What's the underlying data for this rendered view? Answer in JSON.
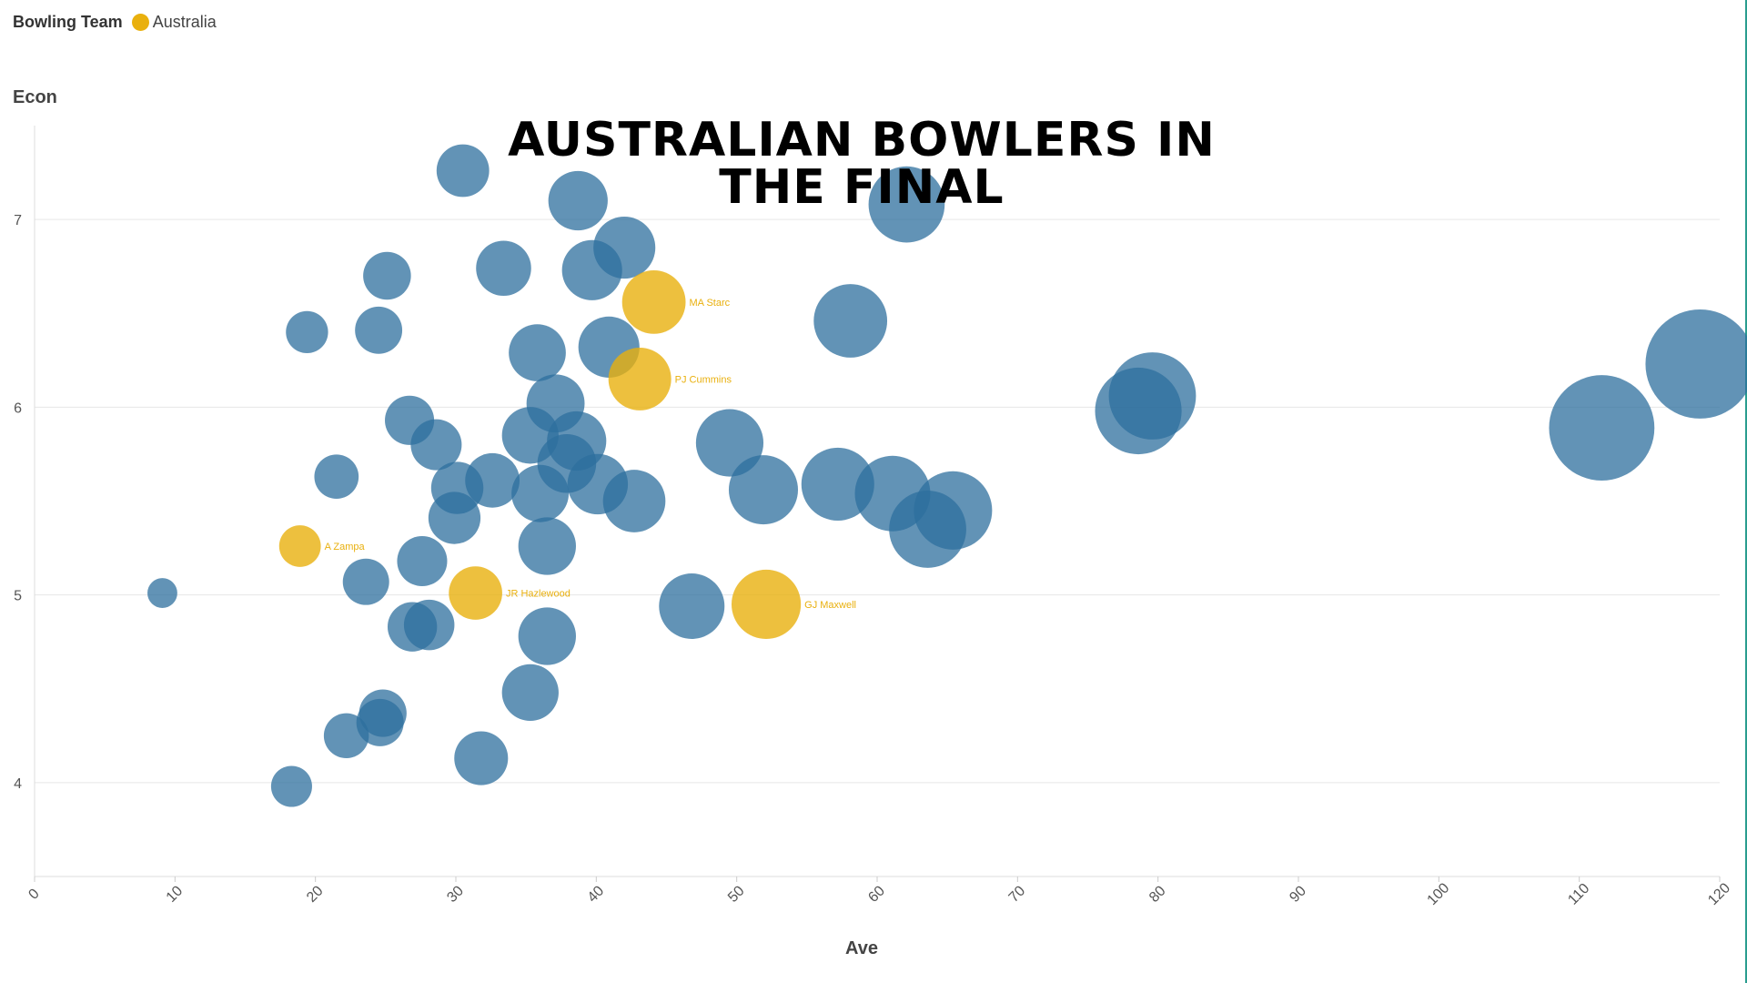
{
  "legend": {
    "title": "Bowling Team",
    "entry": {
      "label": "Australia",
      "color": "#e9b00e"
    }
  },
  "chart_data": {
    "type": "scatter",
    "title": "AUSTRALIAN BOWLERS IN THE FINAL",
    "xlabel": "Ave",
    "ylabel": "Econ",
    "xlim": [
      0,
      120
    ],
    "ylim": [
      3.5,
      7.5
    ],
    "x_ticks": [
      "0",
      "10",
      "20",
      "30",
      "40",
      "50",
      "60",
      "70",
      "80",
      "90",
      "100",
      "110",
      "120"
    ],
    "y_ticks": [
      "4",
      "5",
      "6",
      "7"
    ],
    "grid": true,
    "legend_position": "top-left",
    "colors": {
      "other": "#2e6f9e",
      "highlight": "#e9b00e"
    },
    "highlighted": [
      {
        "x": 44.1,
        "y": 6.56,
        "label": "MA Starc"
      },
      {
        "x": 43.1,
        "y": 6.15,
        "label": "PJ Cummins"
      },
      {
        "x": 18.9,
        "y": 5.26,
        "label": "A Zampa"
      },
      {
        "x": 31.4,
        "y": 5.01,
        "label": "JR Hazlewood"
      },
      {
        "x": 52.1,
        "y": 4.95,
        "label": "GJ Maxwell"
      }
    ],
    "others": [
      {
        "x": 30.5,
        "y": 7.26
      },
      {
        "x": 38.7,
        "y": 7.1
      },
      {
        "x": 42.0,
        "y": 6.85
      },
      {
        "x": 39.7,
        "y": 6.73
      },
      {
        "x": 33.4,
        "y": 6.74
      },
      {
        "x": 25.1,
        "y": 6.7
      },
      {
        "x": 19.4,
        "y": 6.4
      },
      {
        "x": 24.5,
        "y": 6.41
      },
      {
        "x": 35.8,
        "y": 6.29
      },
      {
        "x": 40.9,
        "y": 6.32
      },
      {
        "x": 37.1,
        "y": 6.02
      },
      {
        "x": 26.7,
        "y": 5.93
      },
      {
        "x": 28.6,
        "y": 5.8
      },
      {
        "x": 35.3,
        "y": 5.85
      },
      {
        "x": 38.6,
        "y": 5.82
      },
      {
        "x": 37.9,
        "y": 5.7
      },
      {
        "x": 21.5,
        "y": 5.63
      },
      {
        "x": 32.6,
        "y": 5.61
      },
      {
        "x": 30.1,
        "y": 5.57
      },
      {
        "x": 36.0,
        "y": 5.54
      },
      {
        "x": 40.1,
        "y": 5.59
      },
      {
        "x": 42.7,
        "y": 5.5
      },
      {
        "x": 29.9,
        "y": 5.41
      },
      {
        "x": 36.5,
        "y": 5.26
      },
      {
        "x": 27.6,
        "y": 5.18
      },
      {
        "x": 23.6,
        "y": 5.07
      },
      {
        "x": 9.1,
        "y": 5.01
      },
      {
        "x": 26.9,
        "y": 4.83
      },
      {
        "x": 28.1,
        "y": 4.84
      },
      {
        "x": 36.5,
        "y": 4.78
      },
      {
        "x": 35.3,
        "y": 4.48
      },
      {
        "x": 24.8,
        "y": 4.37
      },
      {
        "x": 24.6,
        "y": 4.32
      },
      {
        "x": 22.2,
        "y": 4.25
      },
      {
        "x": 31.8,
        "y": 4.13
      },
      {
        "x": 18.3,
        "y": 3.98
      },
      {
        "x": 46.8,
        "y": 4.94
      },
      {
        "x": 49.5,
        "y": 5.81
      },
      {
        "x": 51.9,
        "y": 5.56
      },
      {
        "x": 57.2,
        "y": 5.59
      },
      {
        "x": 61.1,
        "y": 5.54
      },
      {
        "x": 65.4,
        "y": 5.45
      },
      {
        "x": 63.6,
        "y": 5.35
      },
      {
        "x": 58.1,
        "y": 6.46
      },
      {
        "x": 62.1,
        "y": 7.08
      },
      {
        "x": 79.6,
        "y": 6.06
      },
      {
        "x": 78.6,
        "y": 5.98
      },
      {
        "x": 111.6,
        "y": 5.89
      },
      {
        "x": 118.6,
        "y": 6.23
      }
    ]
  }
}
